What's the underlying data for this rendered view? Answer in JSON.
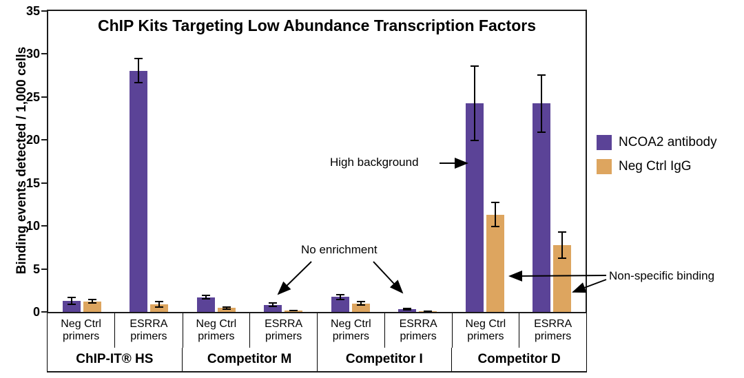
{
  "chart_data": {
    "type": "bar",
    "title": "ChIP Kits Targeting Low Abundance Transcription Factors",
    "ylabel": "Binding events detected / 1,000 cells",
    "xlabel": "",
    "ylim": [
      0,
      35
    ],
    "yticks": [
      0,
      5,
      10,
      15,
      20,
      25,
      30,
      35
    ],
    "grid": false,
    "legend_position": "right",
    "series": [
      {
        "name": "NCOA2 antibody",
        "color": "#5b4397"
      },
      {
        "name": "Neg Ctrl IgG",
        "color": "#dda55f"
      }
    ],
    "groups": [
      {
        "label": "ChIP-IT® HS",
        "subgroups": [
          {
            "label": [
              "Neg Ctrl",
              "primers"
            ],
            "values": [
              1.3,
              1.2
            ],
            "errors": [
              0.5,
              0.3
            ]
          },
          {
            "label": [
              "ESRRA",
              "primers"
            ],
            "values": [
              28.0,
              0.9
            ],
            "errors": [
              1.5,
              0.4
            ]
          }
        ]
      },
      {
        "label": "Competitor M",
        "subgroups": [
          {
            "label": [
              "Neg Ctrl",
              "primers"
            ],
            "values": [
              1.7,
              0.5
            ],
            "errors": [
              0.3,
              0.2
            ]
          },
          {
            "label": [
              "ESRRA",
              "primers"
            ],
            "values": [
              0.8,
              0.15
            ],
            "errors": [
              0.3,
              0.1
            ]
          }
        ]
      },
      {
        "label": "Competitor I",
        "subgroups": [
          {
            "label": [
              "Neg Ctrl",
              "primers"
            ],
            "values": [
              1.8,
              1.0
            ],
            "errors": [
              0.35,
              0.3
            ]
          },
          {
            "label": [
              "ESRRA",
              "primers"
            ],
            "values": [
              0.3,
              0.12
            ],
            "errors": [
              0.15,
              0.1
            ]
          }
        ]
      },
      {
        "label": "Competitor D",
        "subgroups": [
          {
            "label": [
              "Neg Ctrl",
              "primers"
            ],
            "values": [
              24.3,
              11.3
            ],
            "errors": [
              4.4,
              1.5
            ]
          },
          {
            "label": [
              "ESRRA",
              "primers"
            ],
            "values": [
              24.3,
              7.8
            ],
            "errors": [
              3.4,
              1.6
            ]
          }
        ]
      }
    ],
    "annotations": {
      "high_background": "High background",
      "no_enrichment": "No enrichment",
      "non_specific": "Non-specific binding"
    }
  }
}
